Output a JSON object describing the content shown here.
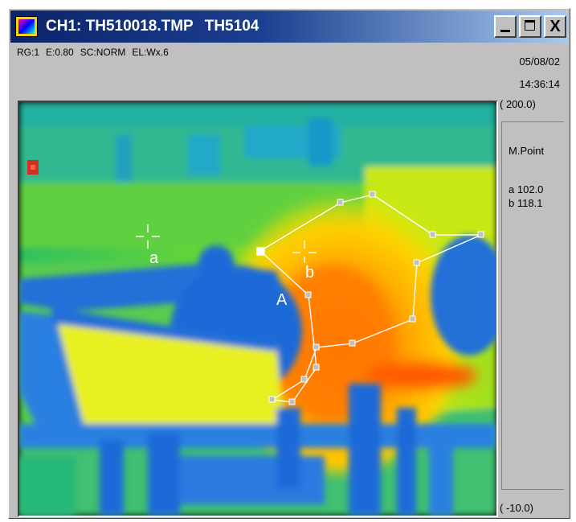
{
  "window": {
    "title_channel": "CH1: TH510018.TMP",
    "title_model": "TH5104",
    "buttons": {
      "minimize": "_",
      "maximize": "",
      "close": "X"
    }
  },
  "infobar": {
    "range": "RG:1",
    "emissivity": "E:0.80",
    "scale": "SC:NORM",
    "element": "EL:Wx.6"
  },
  "datetime": {
    "date": "05/08/02",
    "time": "14:36:14"
  },
  "temp_scale": {
    "max": "( 200.0)",
    "min": "( -10.0)"
  },
  "side_panel": {
    "title": "M.Point",
    "points": [
      {
        "label": "a",
        "value": "102.0"
      },
      {
        "label": "b",
        "value": "118.1"
      }
    ]
  },
  "markers": {
    "a": "a",
    "b": "b",
    "area": "A"
  },
  "colors": {
    "titlebar_start": "#0a246a",
    "titlebar_end": "#a6caf0",
    "window_bg": "#c0c0c0",
    "overlay": "#ffffff"
  }
}
